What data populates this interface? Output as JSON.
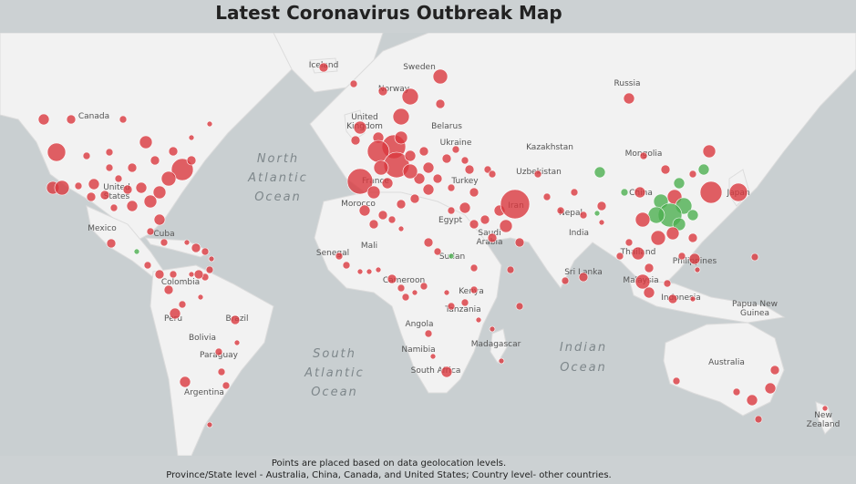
{
  "title": "Latest Coronavirus Outbreak Map",
  "footnote_line1": "Points are placed based on data geolocation levels.",
  "footnote_line2": "Province/State level - Australia, China, Canada, and United States; Country level- other countries.",
  "colors": {
    "ocean": "#c9cfd1",
    "land": "#f2f2f2",
    "confirmed": "#d9383e",
    "recovered": "#4caf50"
  },
  "country_labels": [
    "Iceland",
    "Sweden",
    "Norway",
    "Russia",
    "Canada",
    "United Kingdom",
    "Belarus",
    "Ukraine",
    "Kazakhstan",
    "Mongolia",
    "France",
    "Uzbekistan",
    "United States",
    "Turkey",
    "China",
    "Japan",
    "Morocco",
    "Iran",
    "Mexico",
    "Egypt",
    "Saudi Arabia",
    "Nepal",
    "India",
    "Cuba",
    "Thailand",
    "Mali",
    "Senegal",
    "Sudan",
    "Philippines",
    "Sri Lanka",
    "Cameroon",
    "Colombia",
    "Kenya",
    "Malaysia",
    "Indonesia",
    "Papua New Guinea",
    "Peru",
    "Brazil",
    "Tanzania",
    "Angola",
    "Bolivia",
    "Madagascar",
    "Namibia",
    "Paraguay",
    "South Africa",
    "Australia",
    "Argentina",
    "New Zealand"
  ],
  "ocean_labels": [
    "North Atlantic Ocean",
    "South Atlantic Ocean",
    "Indian Ocean"
  ]
}
